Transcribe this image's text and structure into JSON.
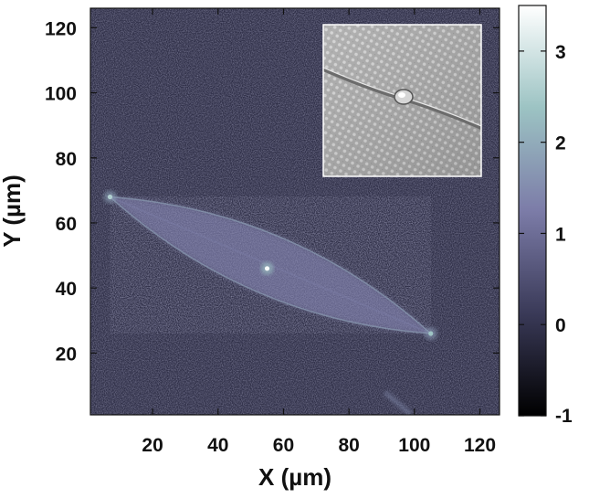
{
  "chart_data": {
    "type": "heatmap",
    "xlabel": "X (µm)",
    "ylabel": "Y (µm)",
    "xlim": [
      1,
      126
    ],
    "ylim": [
      1,
      126
    ],
    "x_ticks": [
      20,
      40,
      60,
      80,
      100,
      120
    ],
    "y_ticks": [
      20,
      40,
      60,
      80,
      100,
      120
    ],
    "colorbar": {
      "range": [
        -1,
        3.5
      ],
      "ticks": [
        -1,
        0,
        1,
        2,
        3
      ],
      "colors": [
        "#000000",
        "#3a3a58",
        "#7c7ca8",
        "#9cc3c3",
        "#ffffff"
      ]
    },
    "features": [
      {
        "kind": "spindle",
        "from": [
          7,
          68
        ],
        "to": [
          105,
          26
        ],
        "peak": 2.2
      },
      {
        "kind": "hotspot",
        "at": [
          55,
          46
        ],
        "peak": 3.4
      },
      {
        "kind": "hotspot",
        "at": [
          7,
          68
        ],
        "peak": 2.6
      },
      {
        "kind": "hotspot",
        "at": [
          105,
          26
        ],
        "peak": 2.4
      },
      {
        "kind": "streak",
        "from": [
          91,
          8
        ],
        "to": [
          99,
          1
        ],
        "peak": 1.5
      }
    ],
    "inset": {
      "kind": "electron-micrograph",
      "corner": "top-right"
    }
  }
}
